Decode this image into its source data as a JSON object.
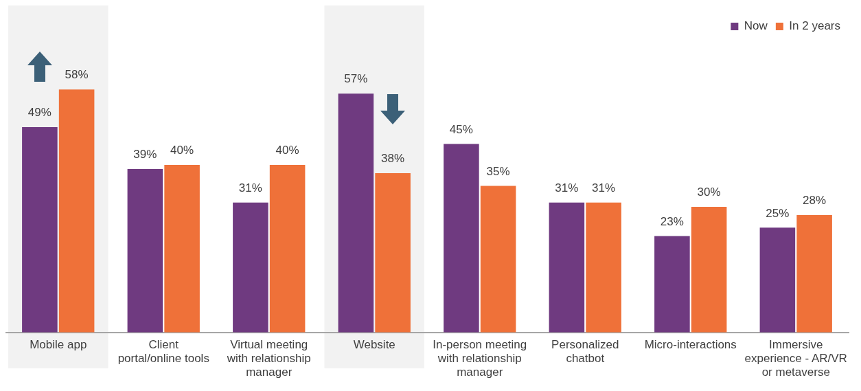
{
  "chart_data": {
    "type": "bar",
    "categories": [
      "Mobile app",
      "Client portal/online tools",
      "Virtual meeting with relationship manager",
      "Website",
      "In-person meeting with relationship manager",
      "Personalized chatbot",
      "Micro-interactions",
      "Immersive experience - AR/VR or metaverse"
    ],
    "series": [
      {
        "name": "Now",
        "color": "#6f3a80",
        "values": [
          49,
          39,
          31,
          57,
          45,
          31,
          23,
          25
        ],
        "value_labels": [
          "49%",
          "39%",
          "31%",
          "57%",
          "45%",
          "31%",
          "23%",
          "25%"
        ]
      },
      {
        "name": "In 2 years",
        "color": "#ef7139",
        "values": [
          58,
          40,
          40,
          38,
          35,
          31,
          30,
          28
        ],
        "value_labels": [
          "58%",
          "40%",
          "40%",
          "38%",
          "35%",
          "31%",
          "30%",
          "28%"
        ]
      }
    ],
    "bands": [
      {
        "axis": "x",
        "from": "Mobile app",
        "to": "Mobile app",
        "color": "#f2f2f2"
      },
      {
        "axis": "x",
        "from": "Website",
        "to": "Website",
        "color": "#f2f2f2"
      }
    ],
    "legend": "top right",
    "grid": false
  }
}
